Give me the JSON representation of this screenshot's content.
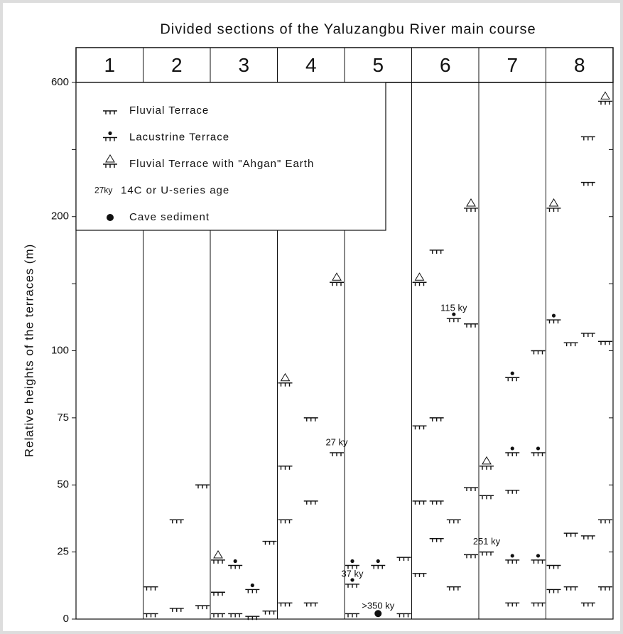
{
  "chart_data": {
    "type": "terrace",
    "title": "Divided sections of the Yaluzangbu River main course",
    "ylabel": "Relative heights of the terraces (m)",
    "ylim": [
      0,
      600
    ],
    "yscale": "piecewise",
    "yticks": [
      0,
      25,
      50,
      75,
      100,
      200,
      600
    ],
    "minor_yticks": [
      150,
      400
    ],
    "legend": [
      {
        "kind": "fluvial",
        "text": "Fluvial Terrace"
      },
      {
        "kind": "lacustrine",
        "text": "Lacustrine Terrace"
      },
      {
        "kind": "ahgan",
        "text": "Fluvial Terrace with \"Ahgan\" Earth"
      },
      {
        "kind": "age",
        "sample": "27ky",
        "text": "14C or U-series age"
      },
      {
        "kind": "cave",
        "text": "Cave sediment"
      }
    ],
    "sections": [
      {
        "name": "1",
        "columns": []
      },
      {
        "name": "2",
        "columns": [
          [
            {
              "height": 12,
              "kind": "fluvial"
            },
            {
              "height": 2,
              "kind": "fluvial"
            }
          ],
          [
            {
              "height": 37,
              "kind": "fluvial"
            },
            {
              "height": 4,
              "kind": "fluvial"
            }
          ],
          [
            {
              "height": 50,
              "kind": "fluvial"
            },
            {
              "height": 5,
              "kind": "fluvial"
            }
          ]
        ]
      },
      {
        "name": "3",
        "columns": [
          [
            {
              "height": 22,
              "kind": "ahgan"
            },
            {
              "height": 10,
              "kind": "fluvial"
            },
            {
              "height": 2,
              "kind": "fluvial"
            }
          ],
          [
            {
              "height": 20,
              "kind": "lacustrine"
            },
            {
              "height": 2,
              "kind": "fluvial"
            }
          ],
          [
            {
              "height": 11,
              "kind": "lacustrine"
            },
            {
              "height": 1,
              "kind": "fluvial"
            }
          ],
          [
            {
              "height": 29,
              "kind": "fluvial"
            },
            {
              "height": 3,
              "kind": "fluvial"
            }
          ]
        ]
      },
      {
        "name": "4",
        "columns": [
          [
            {
              "height": 88,
              "kind": "ahgan"
            },
            {
              "height": 57,
              "kind": "fluvial"
            },
            {
              "height": 37,
              "kind": "fluvial"
            },
            {
              "height": 6,
              "kind": "fluvial"
            }
          ],
          [
            {
              "height": 75,
              "kind": "fluvial"
            },
            {
              "height": 44,
              "kind": "fluvial"
            },
            {
              "height": 6,
              "kind": "fluvial"
            }
          ],
          [
            {
              "height": 151,
              "kind": "ahgan"
            },
            {
              "height": 62,
              "kind": "fluvial",
              "label": "27 ky"
            }
          ]
        ]
      },
      {
        "name": "5",
        "columns": [
          [
            {
              "height": 20,
              "kind": "lacustrine"
            },
            {
              "height": 13,
              "kind": "lacustrine",
              "label": "37 ky"
            },
            {
              "height": 2,
              "kind": "fluvial"
            }
          ],
          [
            {
              "height": 20,
              "kind": "lacustrine"
            },
            {
              "height": 1,
              "kind": "cave",
              "label": ">350 ky"
            }
          ],
          [
            {
              "height": 23,
              "kind": "fluvial"
            },
            {
              "height": 2,
              "kind": "fluvial"
            }
          ]
        ]
      },
      {
        "name": "6",
        "columns": [
          [
            {
              "height": 151,
              "kind": "ahgan"
            },
            {
              "height": 72,
              "kind": "fluvial"
            },
            {
              "height": 44,
              "kind": "fluvial"
            },
            {
              "height": 17,
              "kind": "fluvial"
            }
          ],
          [
            {
              "height": 175,
              "kind": "fluvial"
            },
            {
              "height": 75,
              "kind": "fluvial"
            },
            {
              "height": 44,
              "kind": "fluvial"
            },
            {
              "height": 30,
              "kind": "fluvial"
            }
          ],
          [
            {
              "height": 124,
              "kind": "lacustrine",
              "label": "115 ky"
            },
            {
              "height": 37,
              "kind": "fluvial"
            },
            {
              "height": 12,
              "kind": "fluvial"
            }
          ],
          [
            {
              "height": 225,
              "kind": "ahgan"
            },
            {
              "height": 120,
              "kind": "fluvial"
            },
            {
              "height": 49,
              "kind": "fluvial"
            },
            {
              "height": 24,
              "kind": "fluvial"
            }
          ]
        ]
      },
      {
        "name": "7",
        "columns": [
          [
            {
              "height": 57,
              "kind": "ahgan"
            },
            {
              "height": 46,
              "kind": "fluvial"
            },
            {
              "height": 25,
              "kind": "fluvial",
              "label": "251 ky"
            }
          ],
          [
            {
              "height": 90,
              "kind": "lacustrine"
            },
            {
              "height": 62,
              "kind": "lacustrine"
            },
            {
              "height": 48,
              "kind": "fluvial"
            },
            {
              "height": 22,
              "kind": "lacustrine"
            },
            {
              "height": 6,
              "kind": "fluvial"
            }
          ],
          [
            {
              "height": 100,
              "kind": "fluvial"
            },
            {
              "height": 62,
              "kind": "lacustrine"
            },
            {
              "height": 22,
              "kind": "lacustrine"
            },
            {
              "height": 6,
              "kind": "fluvial"
            }
          ]
        ]
      },
      {
        "name": "8",
        "columns": [
          [
            {
              "height": 225,
              "kind": "ahgan"
            },
            {
              "height": 123,
              "kind": "lacustrine"
            },
            {
              "height": 20,
              "kind": "fluvial"
            },
            {
              "height": 11,
              "kind": "fluvial"
            }
          ],
          [
            {
              "height": 106,
              "kind": "fluvial"
            },
            {
              "height": 32,
              "kind": "fluvial"
            },
            {
              "height": 12,
              "kind": "fluvial"
            }
          ],
          [
            {
              "height": 438,
              "kind": "fluvial"
            },
            {
              "height": 302,
              "kind": "fluvial"
            },
            {
              "height": 113,
              "kind": "fluvial"
            },
            {
              "height": 31,
              "kind": "fluvial"
            },
            {
              "height": 6,
              "kind": "fluvial"
            }
          ],
          [
            {
              "height": 544,
              "kind": "ahgan"
            },
            {
              "height": 107,
              "kind": "fluvial"
            },
            {
              "height": 37,
              "kind": "fluvial"
            },
            {
              "height": 12,
              "kind": "fluvial"
            }
          ]
        ]
      }
    ]
  }
}
